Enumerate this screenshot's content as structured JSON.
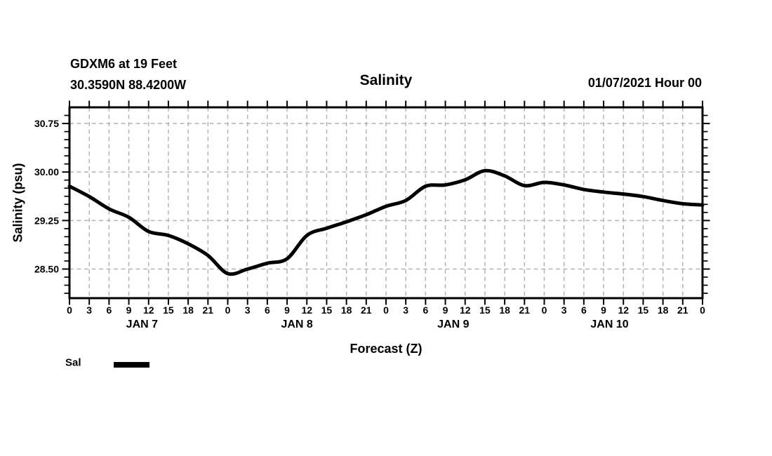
{
  "header": {
    "station": "GDXM6 at 19 Feet",
    "coords": "30.3590N 88.4200W",
    "title": "Salinity",
    "datetime": "01/07/2021 Hour 00"
  },
  "axes": {
    "y_label": "Salinity (psu)",
    "x_label": "Forecast (Z)"
  },
  "legend": {
    "label": "Sal",
    "swatch_color": "#000000"
  },
  "chart_data": {
    "type": "line",
    "title": "Salinity",
    "xlabel": "Forecast (Z)",
    "ylabel": "Salinity (psu)",
    "xlim": [
      0,
      96
    ],
    "ylim": [
      28.05,
      31.0
    ],
    "x_hours": [
      0,
      3,
      6,
      9,
      12,
      15,
      18,
      21,
      24,
      27,
      30,
      33,
      36,
      39,
      42,
      45,
      48,
      51,
      54,
      57,
      60,
      63,
      66,
      69,
      72,
      75,
      78,
      81,
      84,
      87,
      90,
      93,
      96
    ],
    "x_tick_labels": [
      "0",
      "3",
      "6",
      "9",
      "12",
      "15",
      "18",
      "21",
      "0",
      "3",
      "6",
      "9",
      "12",
      "15",
      "18",
      "21",
      "0",
      "3",
      "6",
      "9",
      "12",
      "15",
      "18",
      "21",
      "0",
      "3",
      "6",
      "9",
      "12",
      "15",
      "18",
      "21",
      "0"
    ],
    "day_labels": [
      {
        "label": "JAN 7",
        "hour": 11.0
      },
      {
        "label": "JAN 8",
        "hour": 34.5
      },
      {
        "label": "JAN 9",
        "hour": 58.2
      },
      {
        "label": "JAN 10",
        "hour": 81.9
      }
    ],
    "y_major_ticks": [
      {
        "value": 28.5,
        "label": "28.50"
      },
      {
        "value": 29.25,
        "label": "29.25"
      },
      {
        "value": 30.0,
        "label": "30.00"
      },
      {
        "value": 30.75,
        "label": "30.75"
      }
    ],
    "y_minor_step": 0.125,
    "grid": {
      "show": true,
      "dashed": true,
      "color": "#b4b4b4"
    },
    "legend_position": "bottom-left",
    "series": [
      {
        "name": "Sal",
        "color": "#000000",
        "values": [
          29.78,
          29.62,
          29.43,
          29.3,
          29.08,
          29.02,
          28.89,
          28.71,
          28.43,
          28.5,
          28.59,
          28.66,
          29.02,
          29.13,
          29.23,
          29.34,
          29.47,
          29.56,
          29.78,
          29.8,
          29.88,
          30.02,
          29.94,
          29.79,
          29.84,
          29.8,
          29.73,
          29.69,
          29.66,
          29.62,
          29.56,
          29.51,
          29.49
        ]
      }
    ]
  }
}
